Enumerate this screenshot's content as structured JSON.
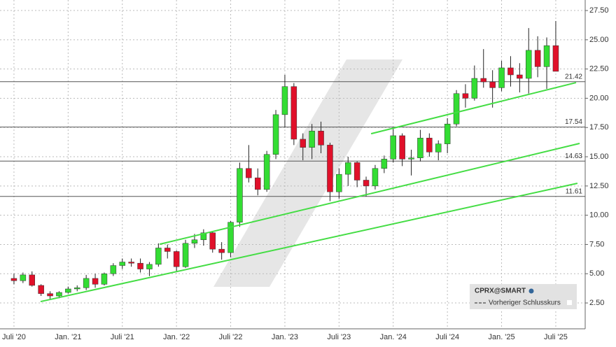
{
  "chart_data": {
    "type": "candlestick",
    "categories": [
      "Juli '20",
      null,
      null,
      null,
      null,
      null,
      "Jan. '21",
      null,
      null,
      null,
      null,
      null,
      "Juli '21",
      null,
      null,
      null,
      null,
      null,
      "Jan. '22",
      null,
      null,
      null,
      null,
      null,
      "Juli '22",
      null,
      null,
      null,
      null,
      null,
      "Jan. '23",
      null,
      null,
      null,
      null,
      null,
      "Juli '23",
      null,
      null,
      null,
      null,
      null,
      "Jan. '24",
      null,
      null,
      null,
      null,
      null,
      "Juli '24",
      null,
      null,
      null,
      null,
      null,
      "Jan. '25",
      null,
      null,
      null,
      null,
      null,
      "Juli '25"
    ],
    "open": [
      4.6,
      4.4,
      4.9,
      4.0,
      3.3,
      3.1,
      3.4,
      3.7,
      3.8,
      4.6,
      4.1,
      5.0,
      5.7,
      6.0,
      5.9,
      5.4,
      5.8,
      7.2,
      6.9,
      5.6,
      7.6,
      7.9,
      8.5,
      7.1,
      6.8,
      9.4,
      14.0,
      13.2,
      12.2,
      15.2,
      18.6,
      21.0,
      16.5,
      15.8,
      17.2,
      16.0,
      12.0,
      13.5,
      14.5,
      13.0,
      12.5,
      14.0,
      14.8,
      16.8,
      14.8,
      14.9,
      16.6,
      15.4,
      16.1,
      17.8,
      20.4,
      20.0,
      21.7,
      21.4,
      20.9,
      22.6,
      22.0,
      21.7,
      24.1,
      22.7,
      24.5
    ],
    "high": [
      5.0,
      5.1,
      5.2,
      4.1,
      3.5,
      3.5,
      3.9,
      4.0,
      4.9,
      5.0,
      5.1,
      5.9,
      6.3,
      6.3,
      6.3,
      6.0,
      7.6,
      7.5,
      7.0,
      7.9,
      8.4,
      8.8,
      8.6,
      7.7,
      9.5,
      14.5,
      16.0,
      14.0,
      15.5,
      19.0,
      22.0,
      21.3,
      17.0,
      17.8,
      18.0,
      16.2,
      14.0,
      15.0,
      14.6,
      13.3,
      14.3,
      15.1,
      17.4,
      17.0,
      15.6,
      17.3,
      17.0,
      16.4,
      18.3,
      20.7,
      21.2,
      22.8,
      24.2,
      22.4,
      23.2,
      23.6,
      23.0,
      26.0,
      25.3,
      25.2,
      26.6
    ],
    "low": [
      4.1,
      4.2,
      3.9,
      3.1,
      2.8,
      2.9,
      3.3,
      3.5,
      3.6,
      3.8,
      4.0,
      4.8,
      5.4,
      5.6,
      5.1,
      4.8,
      5.6,
      6.3,
      5.2,
      5.5,
      7.2,
      7.4,
      6.8,
      6.2,
      6.4,
      9.0,
      12.8,
      11.7,
      12.0,
      14.8,
      17.5,
      16.0,
      14.7,
      14.8,
      15.3,
      11.2,
      11.4,
      12.5,
      12.4,
      11.6,
      12.2,
      13.6,
      14.5,
      14.2,
      13.4,
      14.6,
      15.0,
      14.7,
      15.3,
      17.6,
      19.2,
      19.8,
      20.9,
      19.2,
      20.6,
      21.0,
      20.5,
      20.4,
      21.8,
      20.8,
      22.5
    ],
    "close": [
      4.4,
      4.9,
      4.0,
      3.3,
      3.1,
      3.4,
      3.7,
      3.8,
      4.6,
      4.1,
      5.0,
      5.7,
      6.0,
      5.9,
      5.4,
      5.8,
      7.2,
      6.9,
      5.6,
      7.6,
      7.9,
      8.5,
      7.1,
      6.8,
      9.4,
      14.0,
      13.2,
      12.2,
      15.2,
      18.6,
      21.0,
      16.5,
      15.8,
      17.2,
      16.0,
      12.0,
      13.5,
      14.5,
      13.0,
      12.5,
      14.0,
      14.8,
      16.8,
      14.8,
      14.9,
      16.6,
      15.4,
      16.1,
      17.8,
      20.4,
      20.0,
      21.7,
      21.4,
      20.9,
      22.6,
      22.0,
      21.7,
      24.1,
      22.7,
      24.5,
      22.3
    ],
    "up_color": "#33dd33",
    "down_color": "#e0102a",
    "ylim": [
      0.29,
      28.4
    ],
    "yticks": [
      {
        "value": 2.5,
        "label": "2.50"
      },
      {
        "value": 5,
        "label": "5.00"
      },
      {
        "value": 7.5,
        "label": "7.50"
      },
      {
        "value": 10,
        "label": "10.00"
      },
      {
        "value": 12.5,
        "label": "12.50"
      },
      {
        "value": 15,
        "label": "15.00"
      },
      {
        "value": 17.5,
        "label": "17.50"
      },
      {
        "value": 20,
        "label": "20.00"
      },
      {
        "value": 22.5,
        "label": "22.50"
      },
      {
        "value": 25,
        "label": "25.00"
      },
      {
        "value": 27.5,
        "label": "27.50"
      }
    ],
    "grid": true,
    "levels": [
      21.42,
      17.54,
      14.63,
      11.61
    ],
    "trendlines": [
      {
        "x": [
          39.55,
          62.25
        ],
        "y": [
          16.97,
          21.34
        ],
        "color": "#44dd44"
      },
      {
        "x": [
          16.13,
          62.64
        ],
        "y": [
          7.52,
          16.14
        ],
        "color": "#44dd44"
      },
      {
        "x": [
          2.95,
          62.4
        ],
        "y": [
          2.62,
          12.73
        ],
        "color": "#44dd44"
      }
    ],
    "legend": {
      "symbol": "CPRX@SMART",
      "items": [
        "Vorheriger Schlusskurs"
      ]
    }
  }
}
